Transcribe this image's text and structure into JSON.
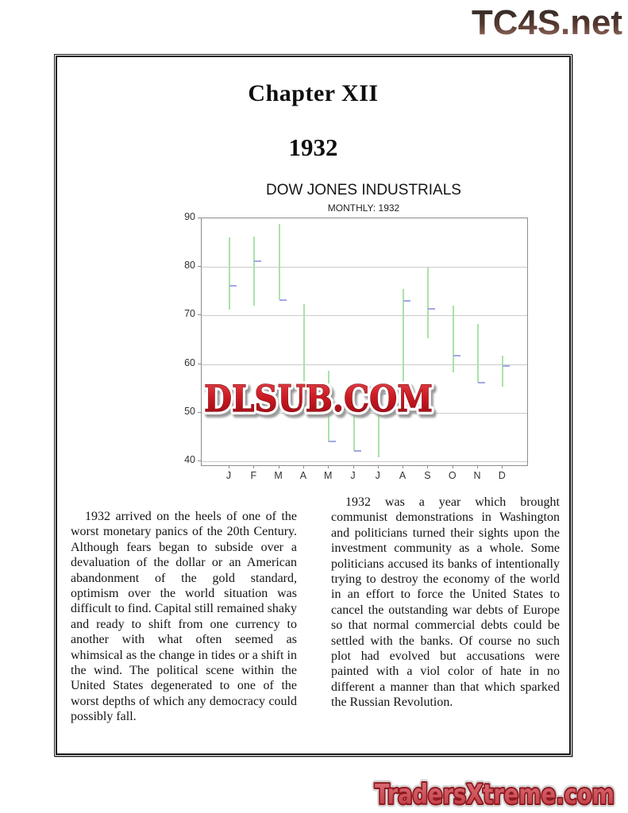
{
  "watermarks": {
    "site_top": "TC4S.net",
    "site_overlay": "DLSUB.COM",
    "site_bottom": "TradersXtreme.com"
  },
  "page": {
    "chapter_heading": "Chapter XII",
    "year_heading": "1932",
    "body_columns": {
      "left": "1932 arrived on the heels of one of the worst monetary panics of the 20th Century. Although fears began to subside over a devaluation of the dollar or an American abandonment of the gold standard, optimism over the world situation was difficult to find.  Capital still remained shaky and ready to shift from one currency to another with what often seemed as whimsical as the change in tides or a shift in the wind. The political scene within the United States degenerated to one of the worst depths of which any democracy could possibly fall.",
      "right": "1932 was a year which brought communist demonstrations in Washington and politicians turned their sights upon the investment community as a whole.  Some politicians accused its banks of intentionally trying to destroy the economy of the world in an effort to force the United States to cancel the outstanding war debts of Europe so that normal commercial debts could be settled with the banks.  Of course no such plot had evolved but accusations were painted with a viol color of hate in no different a manner than that which sparked the Russian Revolution."
    }
  },
  "chart_data": {
    "type": "bar",
    "subtype": "high-low-close",
    "title": "DOW JONES INDUSTRIALS",
    "subtitle": "MONTHLY: 1932",
    "xlabel": "",
    "ylabel": "",
    "categories": [
      "J",
      "F",
      "M",
      "A",
      "M",
      "J",
      "J",
      "A",
      "S",
      "O",
      "N",
      "D"
    ],
    "series": [
      {
        "name": "high",
        "values": [
          86.0,
          86.2,
          88.8,
          72.4,
          58.6,
          50.5,
          54.0,
          75.4,
          79.9,
          72.0,
          68.3,
          61.8
        ]
      },
      {
        "name": "low",
        "values": [
          71.2,
          72.0,
          73.3,
          55.3,
          44.0,
          42.2,
          40.9,
          54.5,
          65.3,
          58.3,
          56.2,
          55.3
        ]
      },
      {
        "name": "close",
        "values": [
          76.2,
          81.3,
          73.3,
          56.0,
          44.2,
          42.3,
          54.0,
          73.2,
          71.5,
          61.9,
          56.3,
          59.8
        ]
      }
    ],
    "ylim": [
      39.2,
      90
    ],
    "yticks": [
      90,
      80,
      70,
      60,
      50,
      40
    ],
    "grid": true,
    "legend": false,
    "colors": {
      "bar": "#a8e3a8",
      "close_tick": "#a3a6e8",
      "gridline": "#cbcbcb",
      "frame": "#8d8d8d"
    }
  },
  "colors": {
    "overlay_red": "#cc1b24",
    "overlay_red_dark": "#94080f",
    "bottom_red": "#ce4a52",
    "bottom_outline": "#8c181d",
    "top_gradient_dark": "#262626",
    "top_gradient_brown": "#a87c6e",
    "body_text": "#141414"
  }
}
